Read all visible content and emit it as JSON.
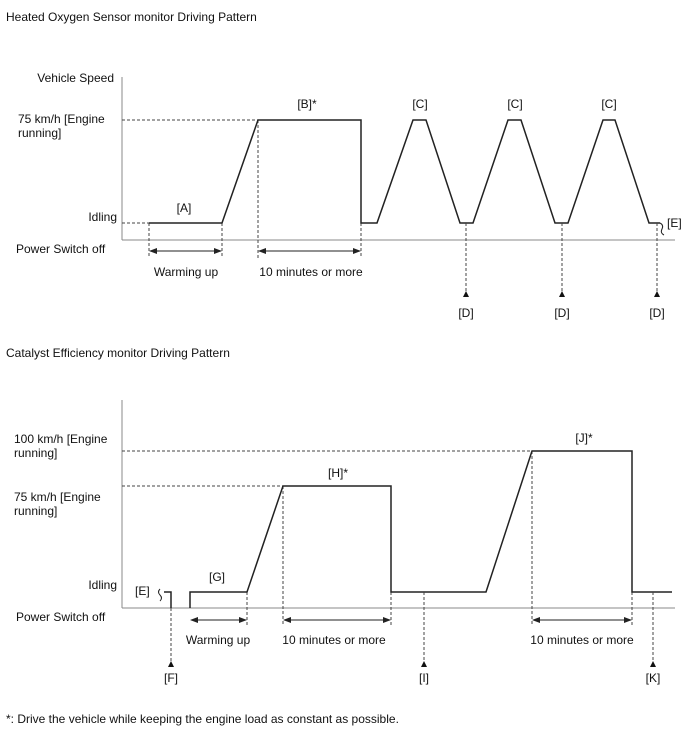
{
  "diagram1": {
    "title": "Heated Oxygen Sensor monitor Driving Pattern",
    "y_axis_label": "Vehicle Speed",
    "level_high_line1": "75 km/h [Engine",
    "level_high_line2": "running]",
    "level_idle": "Idling",
    "level_off": "Power Switch off",
    "label_a": "[A]",
    "label_b": "[B]*",
    "label_c": "[C]",
    "label_d": "[D]",
    "label_e": "[E]",
    "span_warmup": "Warming up",
    "span_10min": "10 minutes or more"
  },
  "diagram2": {
    "title": "Catalyst Efficiency monitor Driving Pattern",
    "level_100_line1": "100 km/h [Engine",
    "level_100_line2": "running]",
    "level_75_line1": "75 km/h [Engine",
    "level_75_line2": "running]",
    "level_idle": "Idling",
    "level_off": "Power Switch off",
    "label_e": "[E]",
    "label_f": "[F]",
    "label_g": "[G]",
    "label_h": "[H]*",
    "label_i": "[I]",
    "label_j": "[J]*",
    "label_k": "[K]",
    "span_warmup": "Warming up",
    "span_10min_1": "10 minutes or more",
    "span_10min_2": "10 minutes or more"
  },
  "footnote": "*: Drive the vehicle while keeping the engine load as constant as possible."
}
